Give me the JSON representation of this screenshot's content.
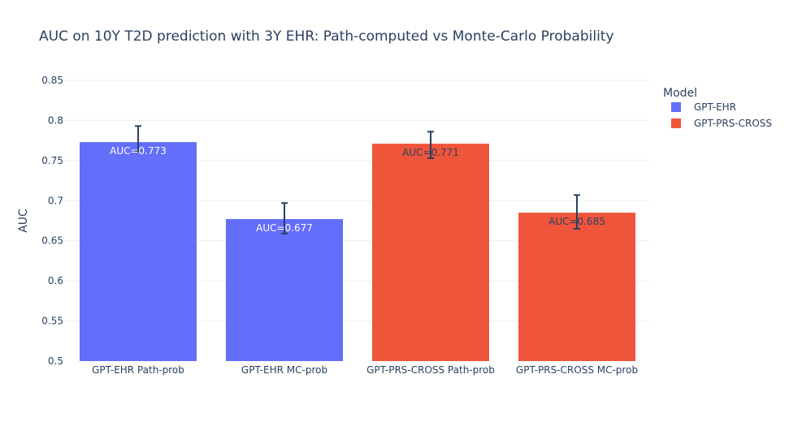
{
  "chart_data": {
    "type": "bar",
    "title": "AUC on 10Y T2D prediction with 3Y EHR: Path-computed vs Monte-Carlo Probability",
    "ylabel": "AUC",
    "xlabel": "",
    "ylim": [
      0.5,
      0.85
    ],
    "yticks": [
      0.5,
      0.55,
      0.6,
      0.65,
      0.7,
      0.75,
      0.8,
      0.85
    ],
    "ytick_labels": [
      "0.5",
      "0.55",
      "0.6",
      "0.65",
      "0.7",
      "0.75",
      "0.8",
      "0.85"
    ],
    "grid": true,
    "legend": {
      "title": "Model",
      "placement": "right",
      "entries": [
        {
          "name": "GPT-EHR",
          "color": "#636efa"
        },
        {
          "name": "GPT-PRS-CROSS",
          "color": "#ef553b"
        }
      ]
    },
    "bars": [
      {
        "category": "GPT-EHR Path-prob",
        "model": "GPT-EHR",
        "value": 0.773,
        "err_low": 0.762,
        "err_high": 0.793,
        "label": "AUC=0.773",
        "label_color": "#ffffff"
      },
      {
        "category": "GPT-EHR MC-prob",
        "model": "GPT-EHR",
        "value": 0.677,
        "err_low": 0.659,
        "err_high": 0.697,
        "label": "AUC=0.677",
        "label_color": "#ffffff"
      },
      {
        "category": "GPT-PRS-CROSS Path-prob",
        "model": "GPT-PRS-CROSS",
        "value": 0.771,
        "err_low": 0.753,
        "err_high": 0.786,
        "label": "AUC=0.771",
        "label_color": "#2a3f5f"
      },
      {
        "category": "GPT-PRS-CROSS MC-prob",
        "model": "GPT-PRS-CROSS",
        "value": 0.685,
        "err_low": 0.665,
        "err_high": 0.707,
        "label": "AUC=0.685",
        "label_color": "#2a3f5f"
      }
    ]
  }
}
